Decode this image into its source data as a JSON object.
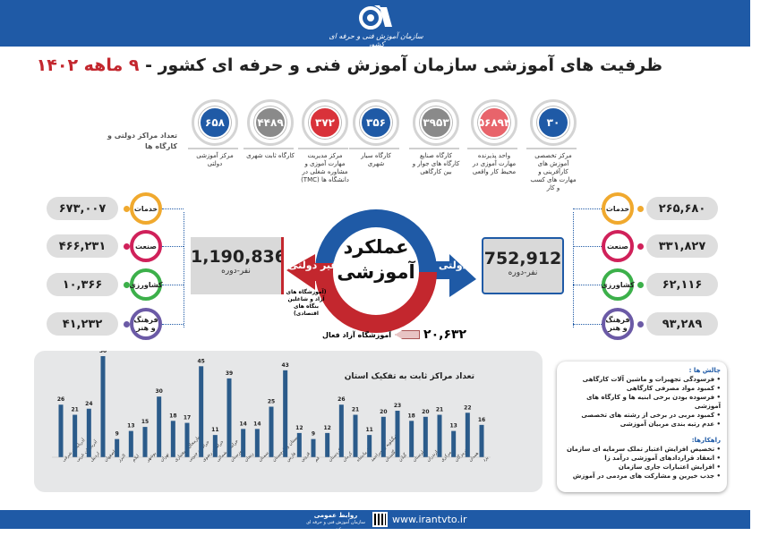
{
  "header": {
    "org_name": "سازمان آموزش فنی و حرفه ای کشور"
  },
  "title": {
    "main": "ظرفیت های آموزشی سازمان آموزش فنی و حرفه ای کشور - ",
    "accent": "۹ ماهه ۱۴۰۲"
  },
  "top_label": "تعداد مراکز دولتی و کارگاه ها",
  "top_stats": [
    {
      "value": "۶۵۸",
      "label": "مرکز آموزشی دولتی",
      "color": "#1f5aa6"
    },
    {
      "value": "۴۴۸۹",
      "label": "کارگاه ثابت شهری",
      "color": "#8a8a8a"
    },
    {
      "value": "۳۷۲",
      "label": "مرکز مدیریت مهارت آموزی و مشاوره شغلی در دانشگاه ها (TMC)",
      "color": "#d9323a"
    },
    {
      "value": "۳۵۶",
      "label": "کارگاه سیار شهری",
      "color": "#1f5aa6"
    },
    {
      "value": "۳۹۵۳",
      "label": "کارگاه صنایع کارگاه های جوار و بین کارگاهی",
      "color": "#8a8a8a"
    },
    {
      "value": "۵۶۸۹۴",
      "label": "واحد پذیرنده مهارت آموزی در محیط کار واقعی",
      "color": "#e8646b"
    },
    {
      "value": "۳۰",
      "label": "مرکز تخصصی آموزش های کارآفرینی و مهارت های کسب و کار",
      "color": "#1f5aa6"
    }
  ],
  "center": {
    "title1": "عملکرد",
    "title2": "آموزشی",
    "gov_label": "دولتی",
    "nongov_label": "غیر دولتی",
    "nongov_note": "(آموزشگاه های آزاد و شاغلین بنگاه های اقتصادی)",
    "gov_total": "752,912",
    "nongov_total": "1,190,836",
    "unit": "نفر-دوره",
    "free_value": "۲۰,۶۳۲",
    "free_label": "آموزشگاه آزاد فعال"
  },
  "nongov_sectors": [
    {
      "label": "خدمات",
      "value": "۶۷۳,۰۰۷",
      "color": "#f0a92e"
    },
    {
      "label": "صنعت",
      "value": "۴۶۶,۲۳۱",
      "color": "#d0215a"
    },
    {
      "label": "کشاورزی",
      "value": "۱۰,۳۶۶",
      "color": "#3cb04a"
    },
    {
      "label": "فرهنگ و هنر",
      "value": "۴۱,۲۳۲",
      "color": "#6b5aa6"
    }
  ],
  "gov_sectors": [
    {
      "label": "خدمات",
      "value": "۲۶۵,۶۸۰",
      "color": "#f0a92e"
    },
    {
      "label": "صنعت",
      "value": "۳۳۱,۸۲۷",
      "color": "#d0215a"
    },
    {
      "label": "کشاورزی",
      "value": "۶۲,۱۱۶",
      "color": "#3cb04a"
    },
    {
      "label": "فرهنگ و هنر",
      "value": "۹۳,۲۸۹",
      "color": "#6b5aa6"
    }
  ],
  "chart_data": {
    "type": "bar",
    "title": "تعداد مراکز ثابت به تفکیک استان",
    "categories": [
      "آذربایجان شرقی",
      "آذربایجان غربی",
      "اردبیل",
      "اصفهان",
      "البرز",
      "ایلام",
      "بوشهر",
      "تهران",
      "چهارمحال و بختیاری",
      "خراسان جنوبی",
      "خراسان رضوی",
      "خراسان شمالی",
      "خوزستان",
      "زنجان",
      "سمنان",
      "سیستان و بلوچستان",
      "فارس",
      "قزوین",
      "قم",
      "کردستان",
      "کرمان",
      "کرمانشاه",
      "کهگیلویه و بویراحمد",
      "گلستان",
      "گیلان",
      "لرستان",
      "مازندران",
      "مرکزی",
      "هرمزگان",
      "همدان",
      "یزد"
    ],
    "values": [
      26,
      21,
      24,
      50,
      9,
      13,
      15,
      30,
      18,
      17,
      45,
      11,
      39,
      14,
      14,
      25,
      43,
      12,
      9,
      12,
      26,
      21,
      11,
      20,
      23,
      18,
      20,
      21,
      13,
      22,
      16
    ],
    "color": "#2b5b8a",
    "grid": false
  },
  "challenges": {
    "title": "چالش ها :",
    "items": [
      "فرسودگی تجهیزات و ماشین آلات کارگاهی",
      "کمبود مواد مصرفی کارگاهی",
      "فرسوده بودن برخی ابنیه ها و کارگاه های آموزشی",
      "کمبود مربی در برخی از رشته های تخصصی",
      "عدم رتبه بندی مربیان آموزشی"
    ]
  },
  "solutions": {
    "title": "راهکارها:",
    "items": [
      "تخصیص افزایش اعتبار تملک سرمایه ای سازمان",
      "انعقاد قراردادهای آموزشی درآمد زا",
      "افزایش اعتبارات جاری سازمان",
      "جذب خیرین و مشارکت های مردمی در آموزش"
    ]
  },
  "footer": {
    "pr_title": "روابط عمومی",
    "pr_sub": "سازمان آموزش فنی و حرفه ای کشور",
    "url": "www.irantvto.ir"
  }
}
